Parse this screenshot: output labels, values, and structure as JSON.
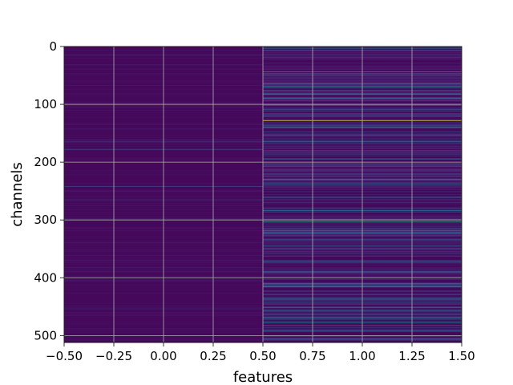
{
  "chart_data": {
    "type": "heatmap",
    "title": "",
    "xlabel": "features",
    "ylabel": "channels",
    "xlim": [
      -0.5,
      1.5
    ],
    "ylim": [
      512,
      0
    ],
    "x_ticks": [
      "−0.50",
      "−0.25",
      "0.00",
      "0.25",
      "0.50",
      "0.75",
      "1.00",
      "1.25",
      "1.50"
    ],
    "x_tick_values": [
      -0.5,
      -0.25,
      0.0,
      0.25,
      0.5,
      0.75,
      1.0,
      1.25,
      1.5
    ],
    "y_ticks": [
      "0",
      "100",
      "200",
      "300",
      "400",
      "500"
    ],
    "y_tick_values": [
      0,
      100,
      200,
      300,
      400,
      500
    ],
    "grid": true,
    "colormap": "viridis",
    "columns": [
      0,
      1
    ],
    "n_rows": 512,
    "bright_rows": [
      {
        "channel": 3,
        "col": 1,
        "value": 0.35
      },
      {
        "channel": 44,
        "col": 1,
        "value": 0.55
      },
      {
        "channel": 47,
        "col": 1,
        "value": 0.4
      },
      {
        "channel": 63,
        "col": 1,
        "value": 0.5
      },
      {
        "channel": 70,
        "col": 1,
        "value": 0.45
      },
      {
        "channel": 77,
        "col": 1,
        "value": 0.38
      },
      {
        "channel": 82,
        "col": 1,
        "value": 0.4
      },
      {
        "channel": 128,
        "col": 1,
        "value": 0.95
      },
      {
        "channel": 140,
        "col": 1,
        "value": 0.45
      },
      {
        "channel": 165,
        "col": 0,
        "value": 0.2
      },
      {
        "channel": 178,
        "col": 0,
        "value": 0.2
      },
      {
        "channel": 195,
        "col": 1,
        "value": 0.3
      },
      {
        "channel": 207,
        "col": 1,
        "value": 0.35
      },
      {
        "channel": 230,
        "col": 1,
        "value": 0.5
      },
      {
        "channel": 236,
        "col": 1,
        "value": 0.42
      },
      {
        "channel": 242,
        "col": 0,
        "value": 0.22
      },
      {
        "channel": 262,
        "col": 1,
        "value": 0.3
      },
      {
        "channel": 284,
        "col": 1,
        "value": 0.45
      },
      {
        "channel": 300,
        "col": 1,
        "value": 0.98
      },
      {
        "channel": 303,
        "col": 1,
        "value": 0.6
      },
      {
        "channel": 318,
        "col": 1,
        "value": 0.55
      },
      {
        "channel": 323,
        "col": 1,
        "value": 0.4
      },
      {
        "channel": 345,
        "col": 1,
        "value": 0.3
      },
      {
        "channel": 372,
        "col": 1,
        "value": 0.35
      },
      {
        "channel": 390,
        "col": 1,
        "value": 0.3
      },
      {
        "channel": 410,
        "col": 1,
        "value": 0.45
      },
      {
        "channel": 416,
        "col": 1,
        "value": 0.42
      },
      {
        "channel": 436,
        "col": 1,
        "value": 0.35
      },
      {
        "channel": 456,
        "col": 1,
        "value": 0.3
      },
      {
        "channel": 470,
        "col": 1,
        "value": 0.4
      },
      {
        "channel": 478,
        "col": 1,
        "value": 0.5
      },
      {
        "channel": 492,
        "col": 1,
        "value": 0.35
      },
      {
        "channel": 505,
        "col": 1,
        "value": 0.3
      }
    ]
  }
}
